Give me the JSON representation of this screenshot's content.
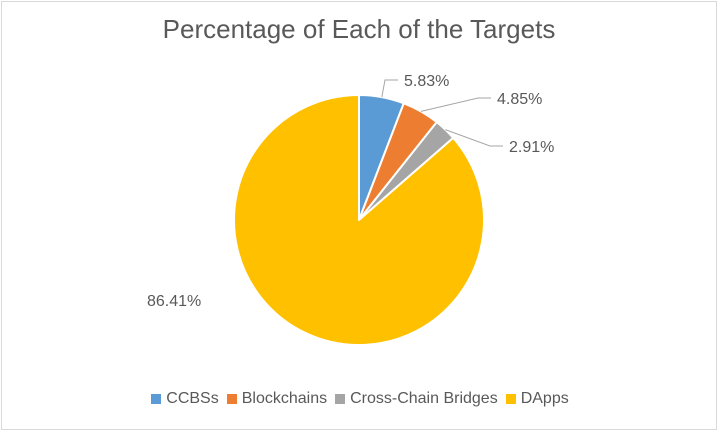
{
  "chart_data": {
    "type": "pie",
    "title": "Percentage of Each of the Targets",
    "categories": [
      "CCBSs",
      "Blockchains",
      "Cross-Chain Bridges",
      "DApps"
    ],
    "values": [
      5.83,
      4.85,
      2.91,
      86.41
    ],
    "labels": [
      "5.83%",
      "4.85%",
      "2.91%",
      "86.41%"
    ],
    "colors": [
      "#5b9bd5",
      "#ed7d31",
      "#a5a5a5",
      "#ffc000"
    ],
    "legend_position": "bottom"
  }
}
